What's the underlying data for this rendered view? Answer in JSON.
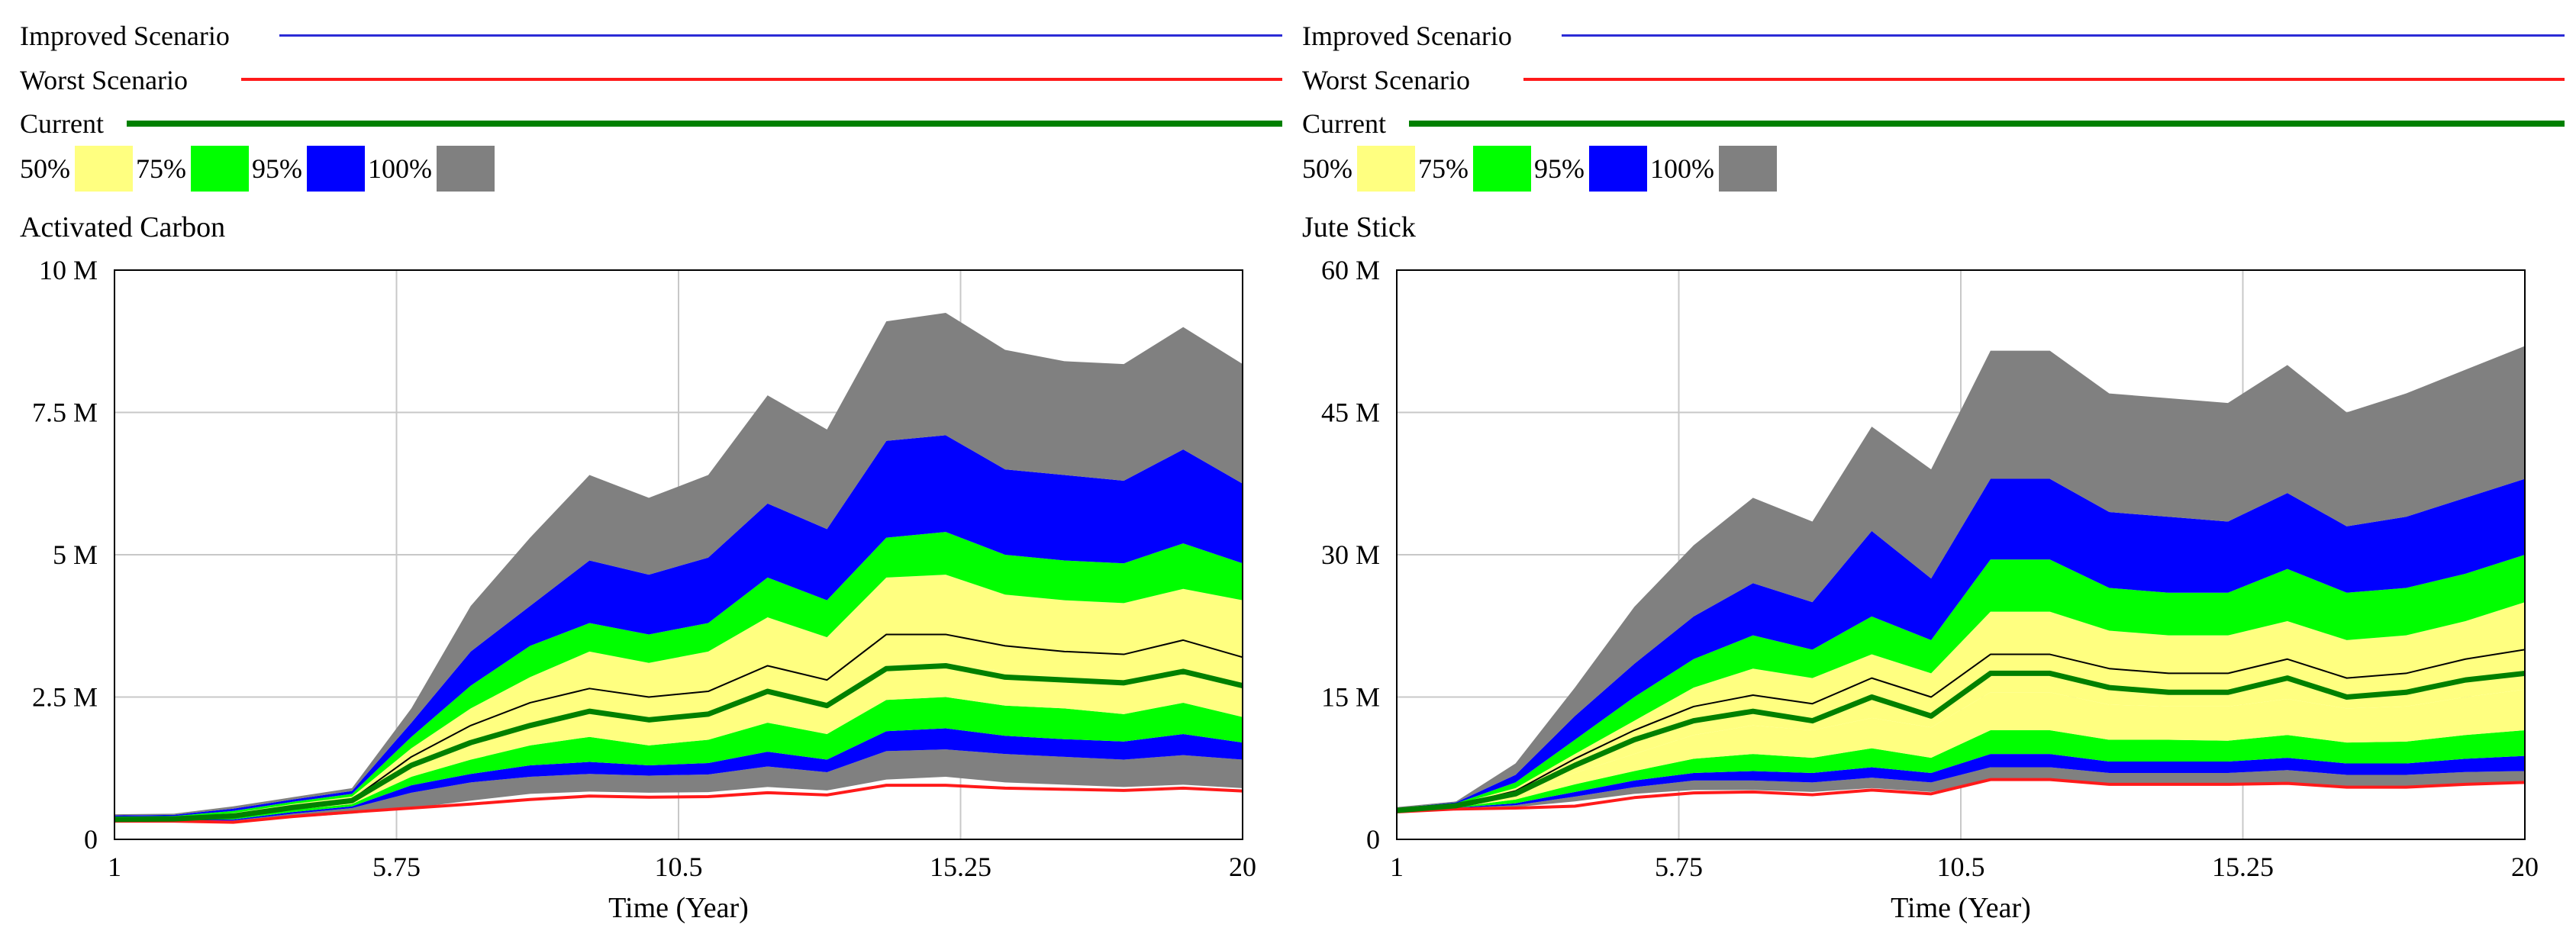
{
  "legend": {
    "improved": {
      "label": "Improved Scenario",
      "color": "#2b2bd6"
    },
    "worst": {
      "label": "Worst Scenario",
      "color": "#ff1a1a"
    },
    "current": {
      "label": "Current",
      "color": "#008000"
    },
    "bands": [
      {
        "label": "50%",
        "color": "#ffff80"
      },
      {
        "label": "75%",
        "color": "#00ff00"
      },
      {
        "label": "95%",
        "color": "#0000ff"
      },
      {
        "label": "100%",
        "color": "#808080"
      }
    ]
  },
  "chart_data": [
    {
      "type": "area",
      "title": "Activated Carbon",
      "xlabel": "Time (Year)",
      "ylabel": "",
      "x_ticks": [
        "1",
        "5.75",
        "10.5",
        "15.25",
        "20"
      ],
      "y_ticks": [
        "0",
        "2.5 M",
        "5 M",
        "7.5 M",
        "10 M"
      ],
      "xlim": [
        1,
        20
      ],
      "ylim": [
        0,
        10000000
      ],
      "x": [
        1,
        2,
        3,
        4,
        5,
        6,
        7,
        8,
        9,
        10,
        11,
        12,
        13,
        14,
        15,
        16,
        17,
        18,
        19,
        20
      ],
      "bands": {
        "min": [
          0.3,
          0.31,
          0.3,
          0.38,
          0.45,
          0.55,
          0.68,
          0.8,
          0.84,
          0.82,
          0.83,
          0.92,
          0.86,
          1.05,
          1.1,
          1.0,
          0.96,
          0.92,
          0.96,
          0.9
        ],
        "p0": [
          0.32,
          0.33,
          0.33,
          0.45,
          0.55,
          0.82,
          1.0,
          1.1,
          1.15,
          1.12,
          1.14,
          1.28,
          1.18,
          1.55,
          1.58,
          1.5,
          1.45,
          1.4,
          1.48,
          1.4
        ],
        "p2_5": [
          0.33,
          0.34,
          0.35,
          0.48,
          0.58,
          0.95,
          1.15,
          1.3,
          1.36,
          1.3,
          1.34,
          1.54,
          1.4,
          1.9,
          1.95,
          1.82,
          1.76,
          1.72,
          1.85,
          1.7
        ],
        "p12_5": [
          0.34,
          0.35,
          0.38,
          0.52,
          0.62,
          1.1,
          1.4,
          1.65,
          1.8,
          1.65,
          1.75,
          2.05,
          1.85,
          2.45,
          2.5,
          2.35,
          2.3,
          2.2,
          2.4,
          2.15
        ],
        "p25": [
          0.35,
          0.36,
          0.4,
          0.55,
          0.65,
          1.25,
          1.65,
          2.05,
          2.25,
          2.1,
          2.2,
          2.6,
          2.35,
          3.05,
          3.1,
          2.95,
          2.85,
          2.75,
          3.0,
          2.7
        ],
        "p75": [
          0.38,
          0.39,
          0.46,
          0.62,
          0.75,
          1.6,
          2.3,
          2.85,
          3.3,
          3.1,
          3.3,
          3.9,
          3.55,
          4.6,
          4.65,
          4.3,
          4.2,
          4.15,
          4.4,
          4.2
        ],
        "p87_5": [
          0.4,
          0.41,
          0.5,
          0.66,
          0.8,
          1.8,
          2.7,
          3.4,
          3.8,
          3.6,
          3.8,
          4.6,
          4.2,
          5.3,
          5.4,
          5.0,
          4.9,
          4.85,
          5.2,
          4.85
        ],
        "p97_5": [
          0.42,
          0.43,
          0.54,
          0.7,
          0.85,
          2.05,
          3.3,
          4.1,
          4.9,
          4.65,
          4.95,
          5.9,
          5.45,
          7.0,
          7.1,
          6.5,
          6.4,
          6.3,
          6.85,
          6.25
        ],
        "max": [
          0.44,
          0.45,
          0.58,
          0.74,
          0.9,
          2.3,
          4.1,
          5.3,
          6.4,
          6.0,
          6.4,
          7.8,
          7.2,
          9.1,
          9.25,
          8.6,
          8.4,
          8.35,
          9.0,
          8.35
        ]
      },
      "series": [
        {
          "name": "Improved Scenario",
          "values": [
            0.36,
            0.37,
            0.43,
            0.58,
            0.7,
            1.45,
            2.0,
            2.4,
            2.65,
            2.5,
            2.6,
            3.05,
            2.8,
            3.6,
            3.6,
            3.4,
            3.3,
            3.25,
            3.5,
            3.2
          ]
        },
        {
          "name": "Worst Scenario",
          "values": [
            0.32,
            0.32,
            0.3,
            0.4,
            0.48,
            0.55,
            0.62,
            0.7,
            0.76,
            0.74,
            0.75,
            0.82,
            0.78,
            0.95,
            0.95,
            0.9,
            0.88,
            0.86,
            0.9,
            0.85
          ]
        },
        {
          "name": "Current",
          "values": [
            0.35,
            0.36,
            0.41,
            0.56,
            0.68,
            1.3,
            1.7,
            2.0,
            2.25,
            2.1,
            2.2,
            2.6,
            2.35,
            3.0,
            3.05,
            2.85,
            2.8,
            2.75,
            2.95,
            2.7
          ]
        }
      ],
      "value_scale": 1000000
    },
    {
      "type": "area",
      "title": "Jute Stick",
      "xlabel": "Time (Year)",
      "ylabel": "",
      "x_ticks": [
        "1",
        "5.75",
        "10.5",
        "15.25",
        "20"
      ],
      "y_ticks": [
        "0",
        "15 M",
        "30 M",
        "45 M",
        "60 M"
      ],
      "xlim": [
        1,
        20
      ],
      "ylim": [
        0,
        60000000
      ],
      "x": [
        1,
        2,
        3,
        4,
        5,
        6,
        7,
        8,
        9,
        10,
        11,
        12,
        13,
        14,
        15,
        16,
        17,
        18,
        19,
        20
      ],
      "bands": {
        "min": [
          2.8,
          3.2,
          3.4,
          4.0,
          4.8,
          5.2,
          5.2,
          5.0,
          5.4,
          5.0,
          6.2,
          6.2,
          5.8,
          5.8,
          5.8,
          6.0,
          5.6,
          5.6,
          5.9,
          6.0
        ],
        "p0": [
          2.9,
          3.3,
          3.6,
          4.5,
          5.5,
          6.2,
          6.2,
          6.0,
          6.5,
          6.0,
          7.6,
          7.6,
          7.0,
          7.0,
          7.0,
          7.3,
          6.8,
          6.8,
          7.1,
          7.2
        ],
        "p2_5": [
          2.95,
          3.35,
          3.8,
          5.0,
          6.2,
          7.0,
          7.2,
          7.0,
          7.6,
          7.0,
          9.0,
          9.0,
          8.2,
          8.2,
          8.2,
          8.6,
          8.0,
          8.0,
          8.5,
          8.8
        ],
        "p12_5": [
          3.0,
          3.4,
          4.2,
          5.8,
          7.2,
          8.5,
          9.0,
          8.6,
          9.6,
          8.6,
          11.5,
          11.5,
          10.5,
          10.5,
          10.4,
          11.0,
          10.2,
          10.3,
          11.0,
          11.5
        ],
        "p25": [
          3.05,
          3.5,
          4.6,
          7.0,
          9.0,
          11.0,
          12.0,
          11.5,
          12.8,
          11.8,
          15.5,
          15.5,
          14.2,
          14.0,
          14.0,
          14.8,
          13.8,
          14.0,
          15.0,
          15.8
        ],
        "p75": [
          3.15,
          3.7,
          5.4,
          9.0,
          12.5,
          16.0,
          18.0,
          17.0,
          19.5,
          17.5,
          24.0,
          24.0,
          22.0,
          21.5,
          21.5,
          23.0,
          21.0,
          21.5,
          23.0,
          25.0
        ],
        "p87_5": [
          3.2,
          3.8,
          6.0,
          10.5,
          15.0,
          19.0,
          21.5,
          20.0,
          23.5,
          21.0,
          29.5,
          29.5,
          26.5,
          26.0,
          26.0,
          28.5,
          26.0,
          26.5,
          28.0,
          30.0
        ],
        "p97_5": [
          3.3,
          3.9,
          6.8,
          13.0,
          18.5,
          23.5,
          27.0,
          25.0,
          32.5,
          27.5,
          38.0,
          38.0,
          34.5,
          34.0,
          33.5,
          36.5,
          33.0,
          34.0,
          36.0,
          38.0
        ],
        "max": [
          3.4,
          4.0,
          8.0,
          16.0,
          24.5,
          31.0,
          36.0,
          33.5,
          43.5,
          39.0,
          51.5,
          51.5,
          47.0,
          46.5,
          46.0,
          50.0,
          45.0,
          47.0,
          49.5,
          52.0
        ]
      },
      "series": [
        {
          "name": "Improved Scenario",
          "values": [
            3.1,
            3.6,
            5.1,
            8.5,
            11.5,
            14.0,
            15.2,
            14.3,
            17.0,
            15.0,
            19.5,
            19.5,
            18.0,
            17.5,
            17.5,
            19.0,
            17.0,
            17.5,
            19.0,
            20.0
          ]
        },
        {
          "name": "Worst Scenario",
          "values": [
            2.9,
            3.2,
            3.3,
            3.5,
            4.4,
            4.9,
            5.0,
            4.7,
            5.2,
            4.8,
            6.3,
            6.3,
            5.8,
            5.8,
            5.8,
            5.9,
            5.5,
            5.5,
            5.8,
            6.0
          ]
        },
        {
          "name": "Current",
          "values": [
            3.05,
            3.55,
            4.8,
            7.8,
            10.5,
            12.5,
            13.5,
            12.5,
            15.0,
            13.0,
            17.5,
            17.5,
            16.0,
            15.5,
            15.5,
            17.0,
            15.0,
            15.5,
            16.8,
            17.5
          ]
        }
      ],
      "value_scale": 1000000
    }
  ]
}
